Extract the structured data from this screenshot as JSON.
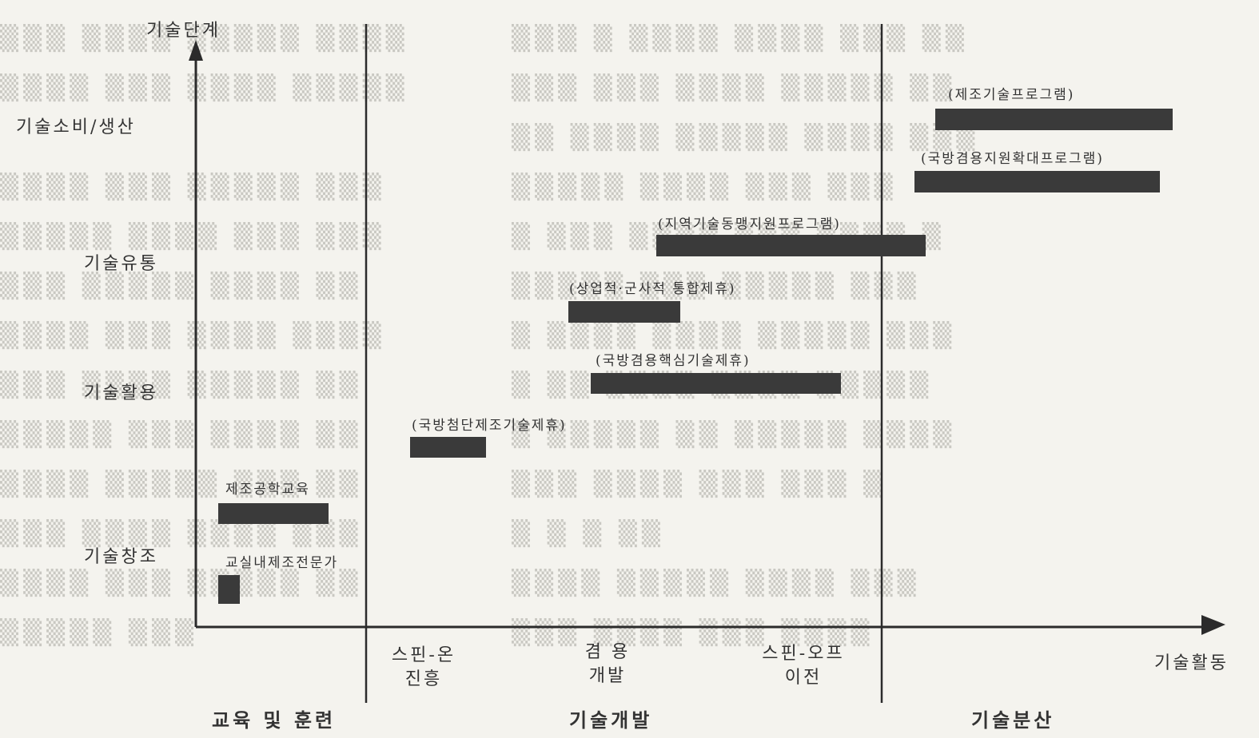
{
  "axes": {
    "y_title": "기술단계",
    "x_title": "기술활동",
    "y_levels": [
      "기술소비/생산",
      "기술유통",
      "기술활용",
      "기술창조"
    ]
  },
  "x_milestones": [
    "스핀-온\n진흥",
    "겸 용\n개발",
    "스핀-오프\n이전"
  ],
  "phases": [
    "교육 및 훈련",
    "기술개발",
    "기술분산"
  ],
  "programs": [
    {
      "label": "교실내제조전문가"
    },
    {
      "label": "제조공학교육"
    },
    {
      "label": "(국방첨단제조기술제휴)"
    },
    {
      "label": "(국방겸용핵심기술제휴)"
    },
    {
      "label": "(상업적·군사적 통합제휴)"
    },
    {
      "label": "(지역기술동맹지원프로그램)"
    },
    {
      "label": "(국방겸용지원확대프로그램)"
    },
    {
      "label": "(제조기술프로그램)"
    }
  ],
  "colors": {
    "bar": "#3a3a3a",
    "axis": "#2b2b2b",
    "background": "#f4f3ee"
  }
}
